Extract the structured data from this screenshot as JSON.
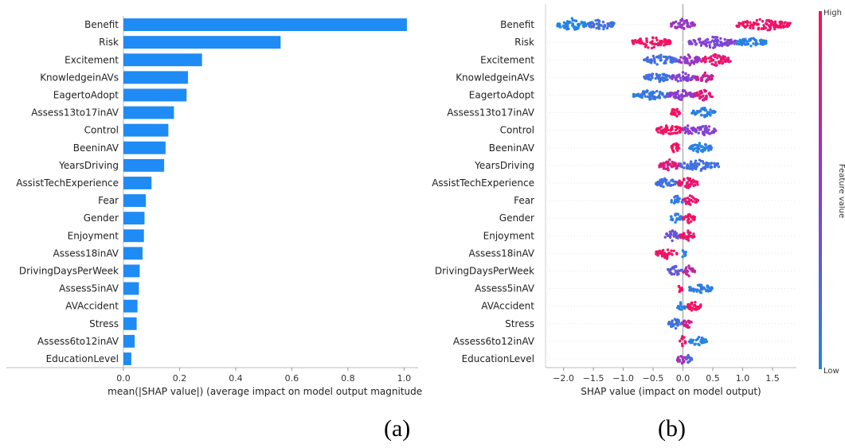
{
  "chart_data": [
    {
      "type": "bar",
      "orientation": "horizontal",
      "categories": [
        "Benefit",
        "Risk",
        "Excitement",
        "KnowledgeinAVs",
        "EagertoAdopt",
        "Assess13to17inAV",
        "Control",
        "BeeninAV",
        "YearsDriving",
        "AssistTechExperience",
        "Fear",
        "Gender",
        "Enjoyment",
        "Assess18inAV",
        "DrivingDaysPerWeek",
        "Assess5inAV",
        "AVAccident",
        "Stress",
        "Assess6to12inAV",
        "EducationLevel"
      ],
      "values": [
        1.01,
        0.56,
        0.28,
        0.23,
        0.225,
        0.18,
        0.16,
        0.15,
        0.145,
        0.1,
        0.08,
        0.075,
        0.073,
        0.068,
        0.058,
        0.055,
        0.05,
        0.047,
        0.04,
        0.028
      ],
      "xlabel": "mean(|SHAP value|) (average impact on model output magnitude)",
      "xlim": [
        0,
        1.05
      ],
      "xticks": [
        "0.0",
        "0.2",
        "0.4",
        "0.6",
        "0.8",
        "1.0"
      ],
      "bar_color": "#1f8bf5",
      "caption": "(a)"
    },
    {
      "type": "scatter",
      "subtype": "beeswarm",
      "features": [
        {
          "name": "Benefit",
          "clusters": [
            [
              -2.1,
              -1.6,
              0.0,
              0.45
            ],
            [
              -1.6,
              -1.15,
              0.15,
              0.3
            ],
            [
              0.9,
              1.8,
              0.95,
              0.45
            ],
            [
              -0.2,
              0.2,
              0.55,
              0.35
            ]
          ]
        },
        {
          "name": "Risk",
          "clusters": [
            [
              -0.85,
              -0.2,
              0.95,
              0.4
            ],
            [
              0.1,
              0.9,
              0.45,
              0.3
            ],
            [
              0.9,
              1.4,
              0.05,
              0.2
            ]
          ]
        },
        {
          "name": "Excitement",
          "clusters": [
            [
              -0.65,
              -0.1,
              0.15,
              0.3
            ],
            [
              -0.1,
              0.3,
              0.55,
              0.3
            ],
            [
              0.3,
              0.8,
              0.9,
              0.4
            ]
          ]
        },
        {
          "name": "KnowledgeinAVs",
          "clusters": [
            [
              -0.65,
              -0.2,
              0.15,
              0.2
            ],
            [
              -0.2,
              0.2,
              0.45,
              0.2
            ],
            [
              0.2,
              0.5,
              0.75,
              0.25
            ]
          ]
        },
        {
          "name": "EagertoAdopt",
          "clusters": [
            [
              -0.85,
              -0.25,
              0.1,
              0.2
            ],
            [
              -0.25,
              0.2,
              0.5,
              0.2
            ],
            [
              0.2,
              0.5,
              0.85,
              0.25
            ]
          ]
        },
        {
          "name": "Assess13to17inAV",
          "clusters": [
            [
              -0.2,
              -0.05,
              0.95,
              0.3
            ],
            [
              0.15,
              0.55,
              0.05,
              0.2
            ]
          ]
        },
        {
          "name": "Control",
          "clusters": [
            [
              -0.45,
              0.0,
              0.95,
              0.3
            ],
            [
              0.0,
              0.2,
              0.5,
              0.2
            ],
            [
              0.2,
              0.55,
              0.45,
              0.2
            ]
          ]
        },
        {
          "name": "BeeninAV",
          "clusters": [
            [
              -0.2,
              -0.05,
              0.95,
              0.35
            ],
            [
              0.1,
              0.5,
              0.05,
              0.2
            ]
          ]
        },
        {
          "name": "YearsDriving",
          "clusters": [
            [
              -0.4,
              -0.05,
              0.85,
              0.3
            ],
            [
              -0.05,
              0.6,
              0.15,
              0.25
            ]
          ]
        },
        {
          "name": "AssistTechExperience",
          "clusters": [
            [
              -0.45,
              -0.1,
              0.15,
              0.2
            ],
            [
              -0.1,
              0.25,
              0.9,
              0.25
            ]
          ]
        },
        {
          "name": "Fear",
          "clusters": [
            [
              -0.2,
              0.0,
              0.1,
              0.2
            ],
            [
              0.0,
              0.25,
              0.9,
              0.25
            ]
          ]
        },
        {
          "name": "Gender",
          "clusters": [
            [
              -0.2,
              0.0,
              0.05,
              0.2
            ],
            [
              0.0,
              0.2,
              0.95,
              0.2
            ]
          ]
        },
        {
          "name": "Enjoyment",
          "clusters": [
            [
              -0.3,
              -0.05,
              0.35,
              0.2
            ],
            [
              -0.05,
              0.2,
              0.9,
              0.25
            ]
          ]
        },
        {
          "name": "Assess18inAV",
          "clusters": [
            [
              -0.45,
              -0.1,
              0.95,
              0.3
            ],
            [
              -0.02,
              0.05,
              0.05,
              0.3
            ]
          ]
        },
        {
          "name": "DrivingDaysPerWeek",
          "clusters": [
            [
              -0.25,
              0.0,
              0.3,
              0.2
            ],
            [
              0.0,
              0.2,
              0.7,
              0.25
            ]
          ]
        },
        {
          "name": "Assess5inAV",
          "clusters": [
            [
              -0.08,
              0.0,
              0.95,
              0.3
            ],
            [
              0.1,
              0.5,
              0.05,
              0.2
            ]
          ]
        },
        {
          "name": "AVAccident",
          "clusters": [
            [
              -0.1,
              0.05,
              0.05,
              0.3
            ],
            [
              0.05,
              0.3,
              0.95,
              0.2
            ]
          ]
        },
        {
          "name": "Stress",
          "clusters": [
            [
              -0.25,
              0.0,
              0.15,
              0.2
            ],
            [
              0.0,
              0.15,
              0.8,
              0.2
            ]
          ]
        },
        {
          "name": "Assess6to12inAV",
          "clusters": [
            [
              -0.05,
              0.05,
              0.95,
              0.3
            ],
            [
              0.1,
              0.4,
              0.05,
              0.2
            ]
          ]
        },
        {
          "name": "EducationLevel",
          "clusters": [
            [
              -0.1,
              0.05,
              0.6,
              0.25
            ],
            [
              0.05,
              0.15,
              0.2,
              0.2
            ]
          ]
        }
      ],
      "xlabel": "SHAP value (impact on model output)",
      "xlim": [
        -2.3,
        1.9
      ],
      "xticks": [
        "−2.0",
        "−1.5",
        "−1.0",
        "−0.5",
        "0.0",
        "0.5",
        "1.0",
        "1.5"
      ],
      "colorbar": {
        "high": "High",
        "low": "Low",
        "label": "Feature value",
        "colors": [
          "#1e88e5",
          "#8b3bd1",
          "#ff0d57"
        ]
      },
      "caption": "(b)"
    }
  ]
}
